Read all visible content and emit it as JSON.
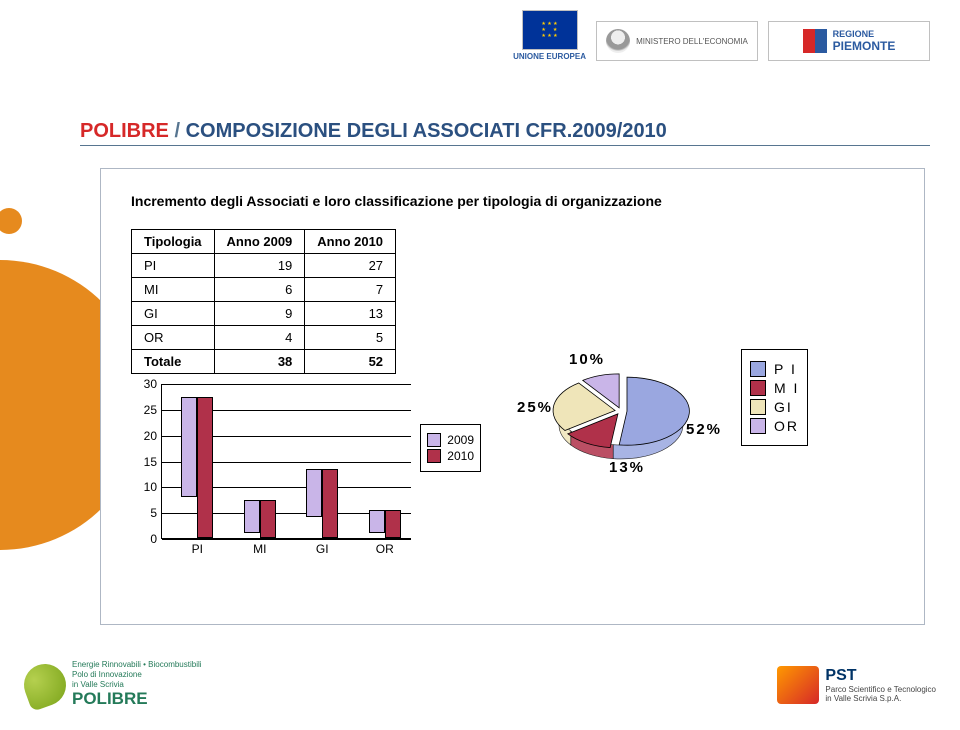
{
  "sponsors": {
    "eu_caption": "UNIONE EUROPEA",
    "ministry_caption": "MINISTERO DELL'ECONOMIA",
    "regione_caption": "REGIONE",
    "regione_name": "PIEMONTE",
    "piemonte_flag_left": "#d62828",
    "piemonte_flag_right": "#2b5aa0"
  },
  "title": {
    "brand": "POLIBRE",
    "sep": " / ",
    "main": "COMPOSIZIONE DEGLI ASSOCIATI CFR.",
    "year": "2009/2010",
    "brand_color": "#d62828",
    "mid_color": "#577590",
    "main_color": "#2b5080"
  },
  "section_subtitle": "Incremento degli Associati e loro classificazione per tipologia di organizzazione",
  "table": {
    "columns": [
      "Tipologia",
      "Anno 2009",
      "Anno 2010"
    ],
    "rows": [
      [
        "PI",
        19,
        27
      ],
      [
        "MI",
        6,
        7
      ],
      [
        "GI",
        9,
        13
      ],
      [
        "OR",
        4,
        5
      ],
      [
        "Totale",
        38,
        52
      ]
    ],
    "last_bold": true
  },
  "bar_chart": {
    "type": "bar",
    "categories": [
      "PI",
      "MI",
      "GI",
      "OR"
    ],
    "series": [
      {
        "name": "2009",
        "color": "#c9b5e8",
        "values": [
          19,
          6,
          9,
          4
        ]
      },
      {
        "name": "2010",
        "color": "#b0314a",
        "values": [
          27,
          7,
          13,
          5
        ]
      }
    ],
    "ymax": 30,
    "ytick_step": 5,
    "plot_bg": "#ffffff",
    "gridline_color": "#000000",
    "axis_fontsize": 12
  },
  "pie_chart": {
    "type": "pie",
    "slices": [
      {
        "label": "PI",
        "label_spaced": "P I",
        "pct": 52,
        "color": "#9aa7e0"
      },
      {
        "label": "MI",
        "label_spaced": "M I",
        "pct": 13,
        "color": "#b0314a"
      },
      {
        "label": "GI",
        "label_spaced": "GI",
        "pct": 25,
        "color": "#efe5b9"
      },
      {
        "label": "OR",
        "label_spaced": "OR",
        "pct": 10,
        "color": "#c9b5e8"
      }
    ],
    "depth_color_suffix": "cc",
    "label_fontsize": 15
  },
  "footer": {
    "polibre_tag1": "Energie Rinnovabili • Biocombustibili",
    "polibre_tag2": "Polo di Innovazione",
    "polibre_tag3": "in Valle Scrivia",
    "polibre_name": "POLIBRE",
    "pst_name": "PST",
    "pst_tag1": "Parco Scientifico e Tecnologico",
    "pst_tag2": "in Valle Scrivia S.p.A."
  },
  "decor": {
    "orange": "#e68a1e"
  }
}
